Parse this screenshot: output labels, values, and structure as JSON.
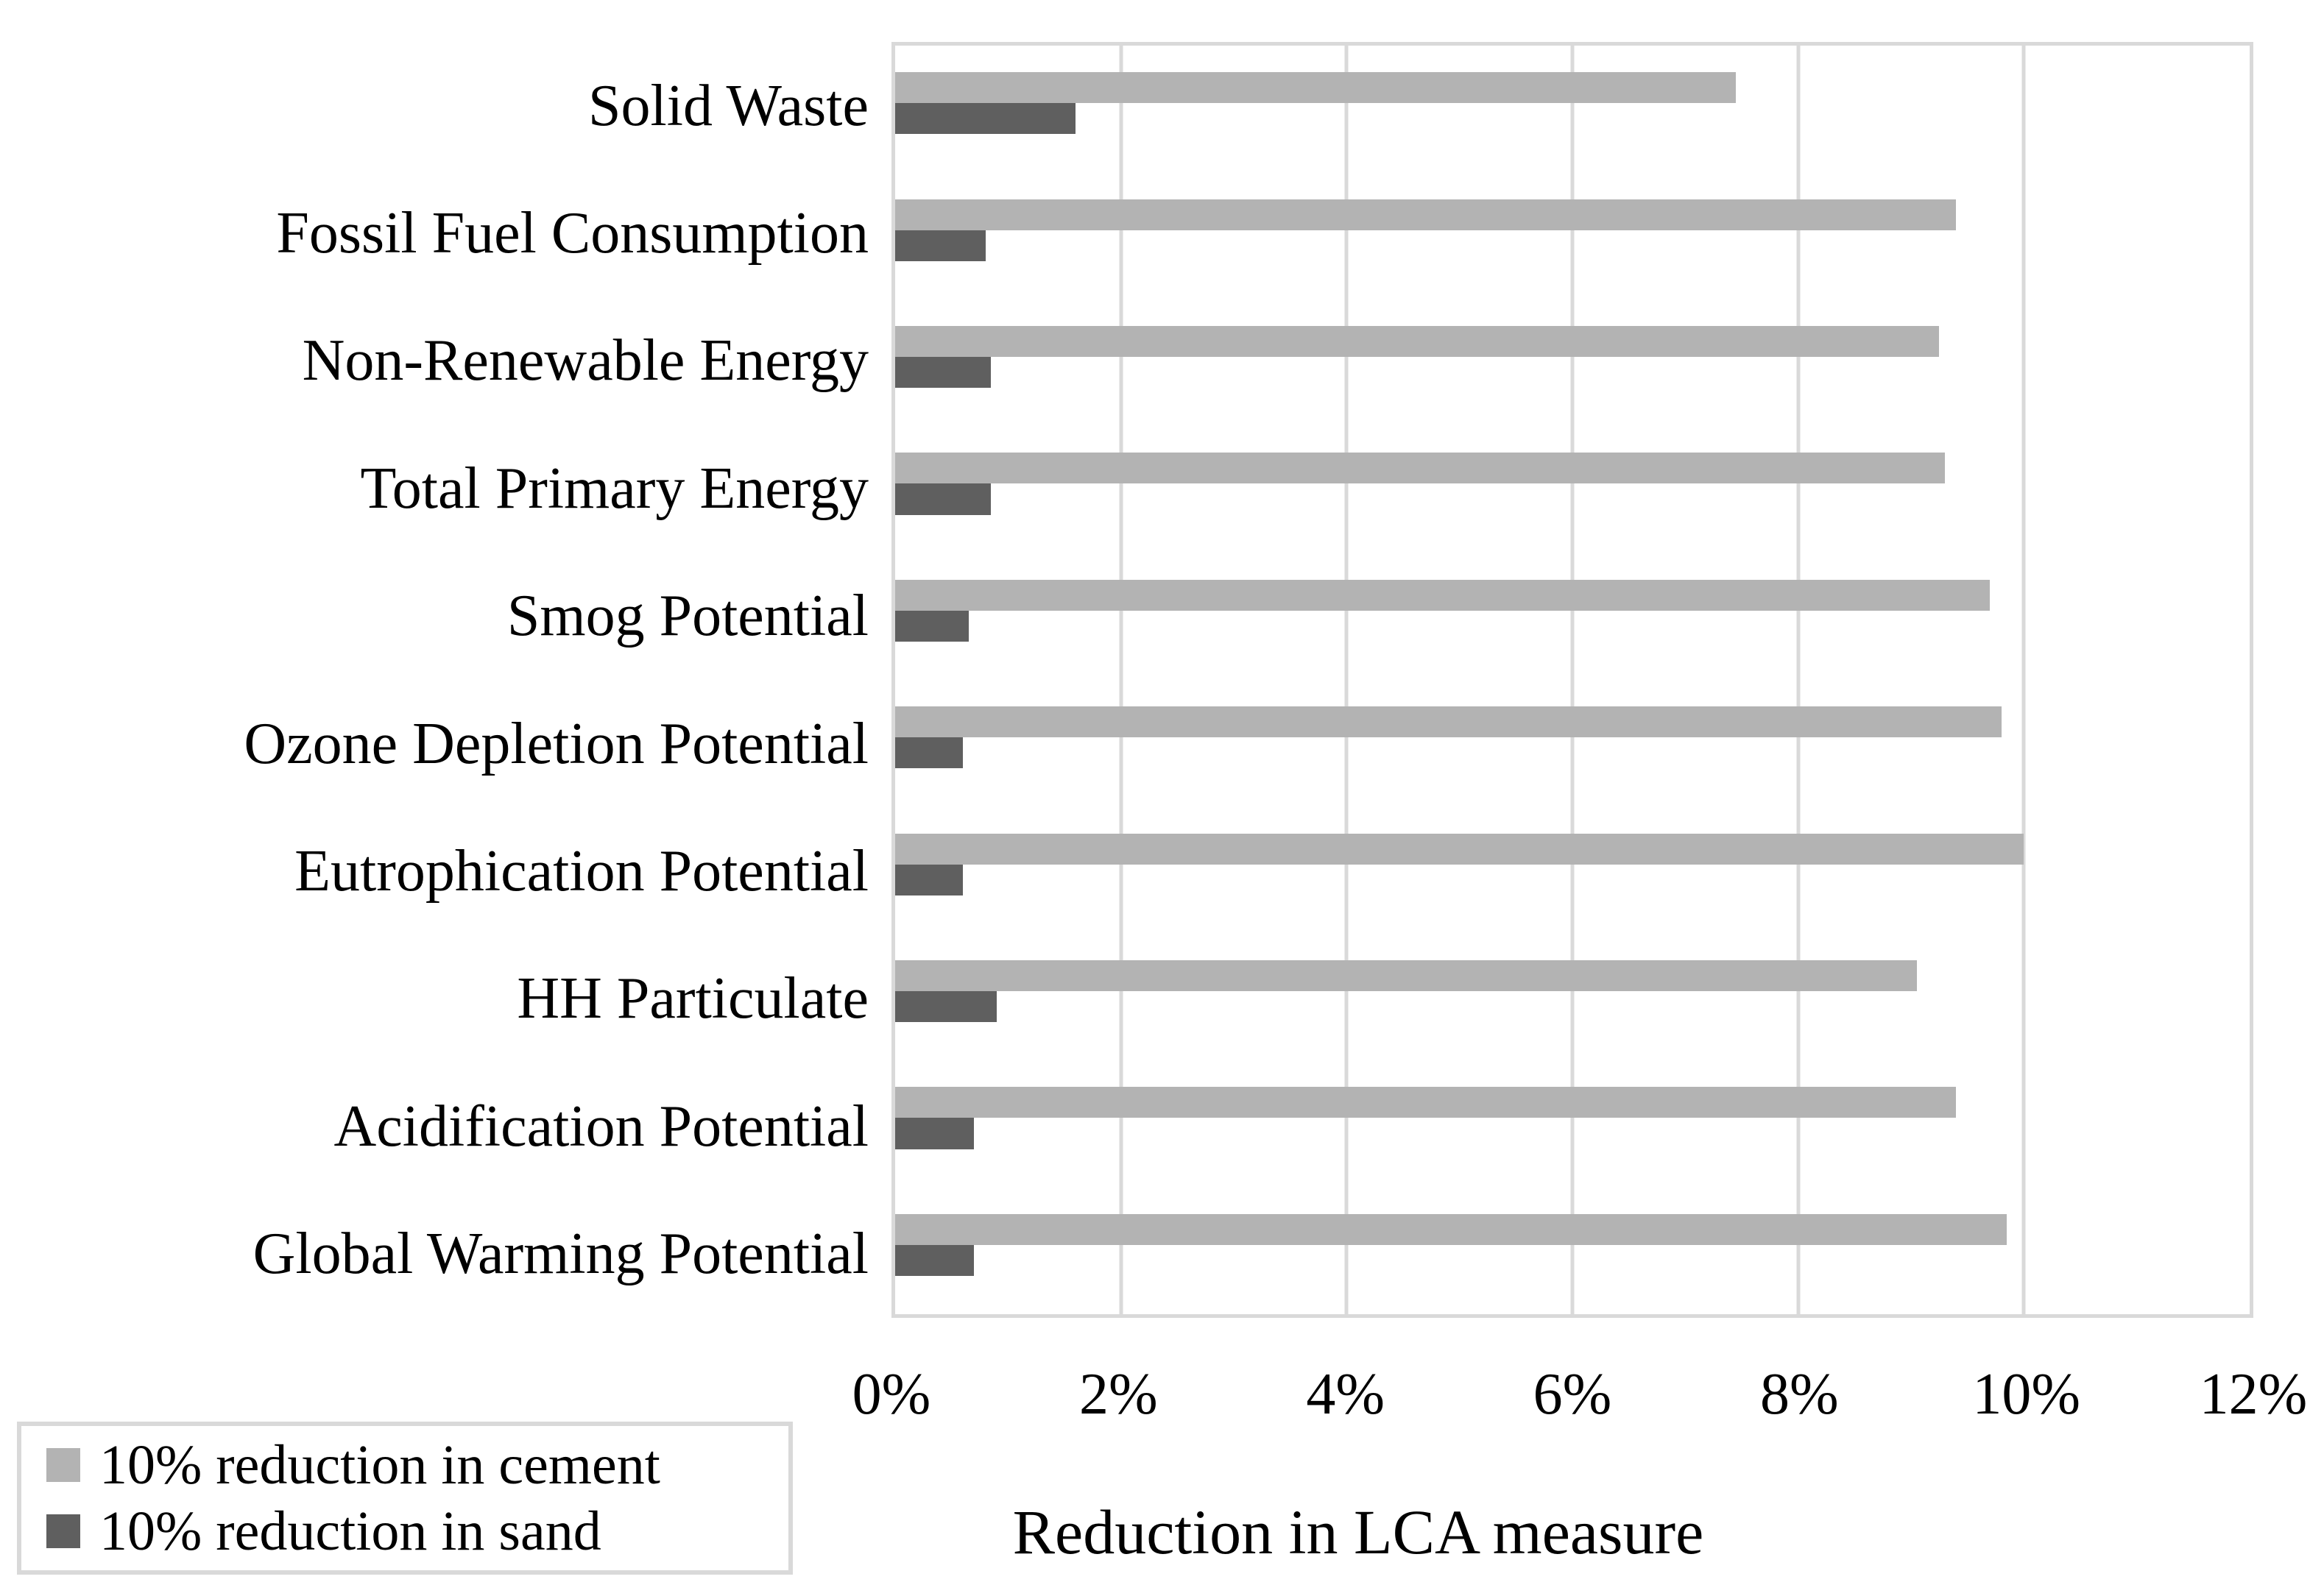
{
  "colors": {
    "background": "#ffffff",
    "gridline": "#d9d9d9",
    "text": "#000000",
    "cement_bar": "#b3b3b3",
    "sand_bar": "#5f5f5f"
  },
  "chart_data": {
    "type": "bar",
    "orientation": "horizontal",
    "title": "",
    "xlabel": "Reduction in LCA measure",
    "ylabel": "",
    "xlim": [
      0,
      12
    ],
    "x_unit": "%",
    "grid": true,
    "legend_position": "bottom-left",
    "x_ticks": [
      {
        "value": 0,
        "label": "0%"
      },
      {
        "value": 2,
        "label": "2%"
      },
      {
        "value": 4,
        "label": "4%"
      },
      {
        "value": 6,
        "label": "6%"
      },
      {
        "value": 8,
        "label": "8%"
      },
      {
        "value": 10,
        "label": "10%"
      },
      {
        "value": 12,
        "label": "12%"
      }
    ],
    "categories": [
      "Solid Waste",
      "Fossil Fuel Consumption",
      "Non-Renewable Energy",
      "Total Primary Energy",
      "Smog Potential",
      "Ozone Depletion Potential",
      "Eutrophication Potential",
      "HH Particulate",
      "Acidification Potential",
      "Global Warming Potential"
    ],
    "series": [
      {
        "name": "10% reduction in cement",
        "color": "#b3b3b3",
        "values": [
          7.45,
          9.4,
          9.25,
          9.3,
          9.7,
          9.8,
          10.0,
          9.05,
          9.4,
          9.85
        ]
      },
      {
        "name": "10% reduction in sand",
        "color": "#5f5f5f",
        "values": [
          1.6,
          0.8,
          0.85,
          0.85,
          0.65,
          0.6,
          0.6,
          0.9,
          0.7,
          0.7
        ]
      }
    ]
  }
}
